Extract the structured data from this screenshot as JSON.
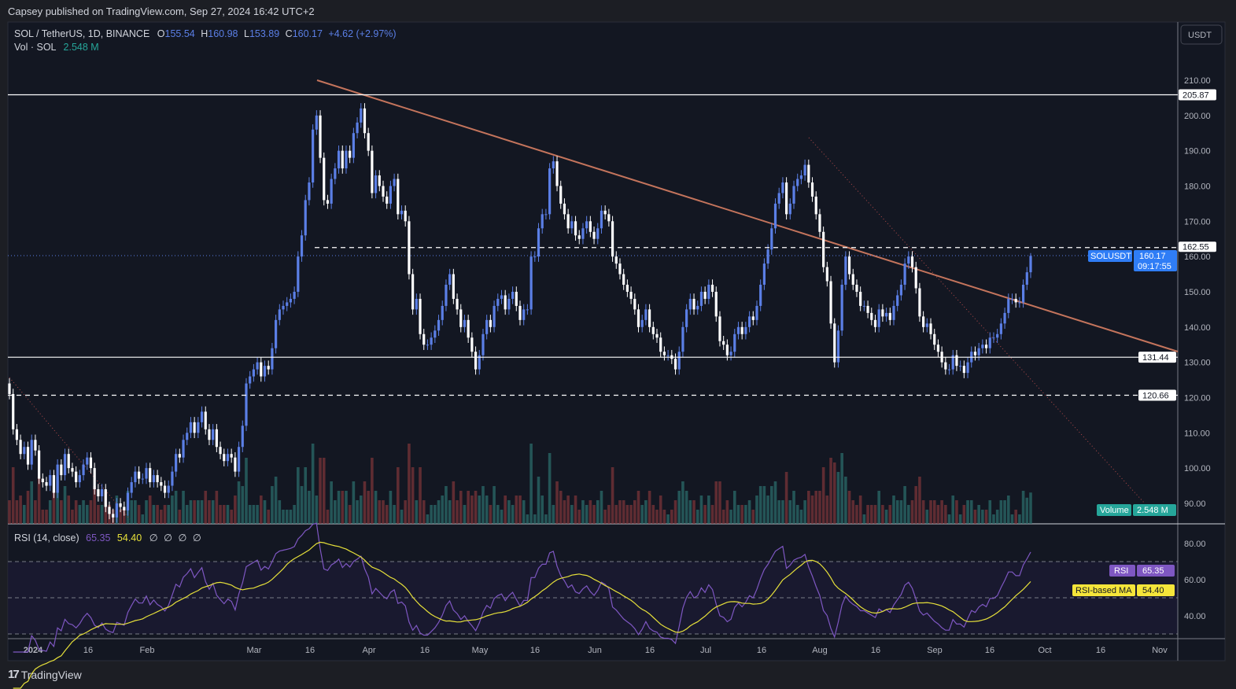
{
  "header": {
    "published": "Capsey published on TradingView.com, Sep 27, 2024 16:42 UTC+2"
  },
  "legend": {
    "symbol": "SOL / TetherUS, 1D, BINANCE",
    "o_label": "O",
    "o": "155.54",
    "h_label": "H",
    "h": "160.98",
    "l_label": "L",
    "l": "153.89",
    "c_label": "C",
    "c": "160.17",
    "change": "+4.62 (+2.97%)",
    "vol_label": "Vol · SOL",
    "vol": "2.548 M"
  },
  "currency_button": "USDT",
  "price_tags": {
    "symbol": "SOLUSDT",
    "last": "160.17",
    "countdown": "09:17:55",
    "levels": [
      "205.87",
      "162.55",
      "131.44",
      "120.66"
    ],
    "volume_label": "Volume",
    "volume_value": "2.548 M"
  },
  "rsi": {
    "title": "RSI (14, close)",
    "value": "65.35",
    "ma_value": "54.40",
    "empty_values": [
      "∅",
      "∅",
      "∅",
      "∅"
    ],
    "tag_rsi": "RSI",
    "tag_ma": "RSI-based MA",
    "axis_ticks": [
      "80.00",
      "60.00",
      "40.00"
    ]
  },
  "footer": {
    "brand": "TradingView"
  },
  "colors": {
    "up": "#5b7fe6",
    "down": "#ffffff",
    "background": "#131722",
    "trendline": "#c4745c",
    "rsi": "#7e57c2",
    "rsi_ma": "#e6e03a",
    "volume_tag": "#26a69a",
    "price_tag": "#2f7df6"
  },
  "chart_data": {
    "type": "candlestick",
    "title": "SOL / TetherUS, 1D, BINANCE",
    "start_date": "2023-12-26",
    "end_date": "2024-09-27",
    "interval": "1D",
    "ylim": [
      85,
      215
    ],
    "y_ticks": [
      "210.00",
      "200.00",
      "190.00",
      "180.00",
      "170.00",
      "160.00",
      "150.00",
      "140.00",
      "130.00",
      "120.00",
      "110.00",
      "100.00",
      "90.00"
    ],
    "x_ticks": [
      "2024",
      "16",
      "Feb",
      "Mar",
      "16",
      "Apr",
      "16",
      "May",
      "16",
      "Jun",
      "16",
      "Jul",
      "16",
      "Aug",
      "16",
      "Sep",
      "16",
      "Oct",
      "16",
      "Nov"
    ],
    "horizontal_levels": [
      205.87,
      162.55,
      131.44,
      120.66
    ],
    "closes": [
      121,
      111,
      108,
      104,
      106,
      101,
      108,
      105,
      97,
      96,
      95,
      98,
      93,
      101,
      98,
      104,
      100,
      99,
      96,
      98,
      101,
      103,
      100,
      94,
      92,
      94,
      89,
      87,
      86,
      90,
      89,
      88,
      93,
      96,
      99,
      97,
      97,
      100,
      96,
      98,
      96,
      95,
      93,
      95,
      99,
      104,
      103,
      108,
      110,
      113,
      110,
      113,
      116,
      111,
      108,
      111,
      106,
      104,
      102,
      104,
      103,
      99,
      106,
      112,
      124,
      126,
      128,
      130,
      126,
      129,
      128,
      134,
      142,
      145,
      146,
      147,
      148,
      150,
      160,
      166,
      176,
      181,
      196,
      200,
      188,
      176,
      175,
      182,
      185,
      190,
      185,
      190,
      188,
      195,
      198,
      202,
      195,
      190,
      178,
      183,
      180,
      177,
      175,
      180,
      182,
      172,
      173,
      170,
      155,
      145,
      148,
      138,
      135,
      135,
      137,
      139,
      142,
      146,
      152,
      155,
      148,
      145,
      140,
      142,
      137,
      133,
      128,
      132,
      138,
      142,
      140,
      146,
      148,
      149,
      145,
      148,
      150,
      146,
      142,
      145,
      145,
      160,
      160,
      168,
      172,
      172,
      185,
      187,
      180,
      175,
      172,
      168,
      170,
      166,
      165,
      168,
      170,
      167,
      165,
      168,
      173,
      172,
      170,
      160,
      158,
      155,
      152,
      150,
      148,
      145,
      140,
      142,
      145,
      140,
      138,
      137,
      133,
      132,
      132,
      131,
      128,
      133,
      140,
      145,
      148,
      145,
      146,
      150,
      148,
      152,
      150,
      143,
      136,
      135,
      132,
      133,
      138,
      140,
      138,
      140,
      143,
      142,
      146,
      152,
      158,
      162,
      168,
      175,
      178,
      181,
      172,
      175,
      180,
      182,
      183,
      186,
      181,
      177,
      172,
      167,
      157,
      153,
      141,
      130,
      139,
      152,
      160,
      155,
      152,
      150,
      146,
      146,
      144,
      142,
      140,
      145,
      143,
      144,
      142,
      146,
      149,
      152,
      158,
      160,
      157,
      151,
      143,
      140,
      141,
      138,
      135,
      133,
      130,
      128,
      128,
      132,
      129,
      129,
      127,
      130,
      133,
      132,
      134,
      135,
      134,
      137,
      137,
      138,
      141,
      144,
      148,
      148,
      147,
      147,
      152,
      155.54,
      160.17
    ],
    "last_candle": {
      "open": 155.54,
      "high": 160.98,
      "low": 153.89,
      "close": 160.17
    }
  }
}
